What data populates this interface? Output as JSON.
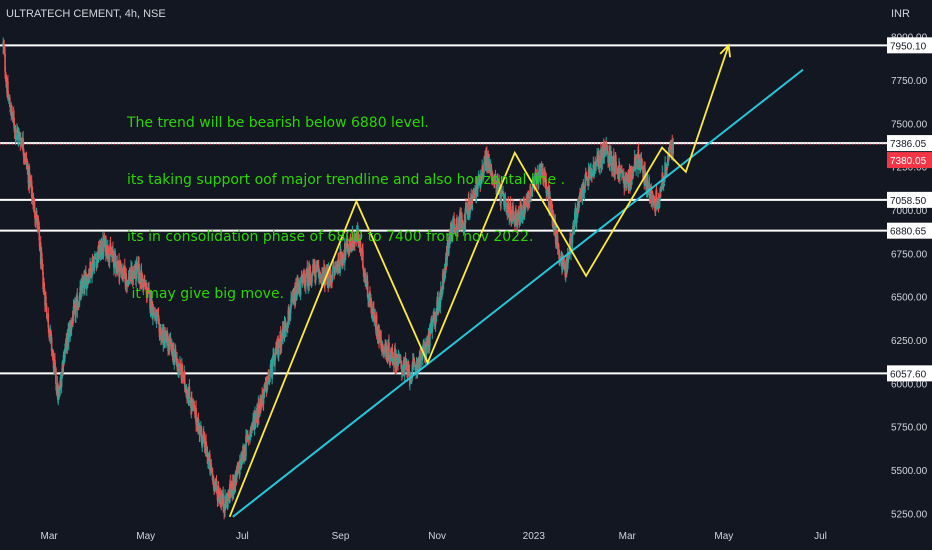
{
  "header": {
    "symbol": "ULTRATECH CEMENT, 4h, NSE",
    "currency": "INR"
  },
  "annotation": [
    "The trend will be bearish below 6880 level.",
    "its taking support oof major trendline and also horizontal line .",
    "its in consolidation phase of 6800 to 7400 from nov 2022.",
    " it may give big move."
  ],
  "colors": {
    "background": "#131722",
    "up": "#26a69a",
    "down": "#ef5350",
    "zigzag": "#ffeb3b",
    "trendline": "#26c6da",
    "levels": "#ffffff",
    "last_price": "#f23645",
    "annotation": "#2bd600",
    "axis_text": "#d1d4dc"
  },
  "chart_data": {
    "type": "candlestick",
    "title": "ULTRATECH CEMENT, 4h, NSE",
    "ylim": [
      5200,
      8050
    ],
    "y_ticks": [
      5250,
      5500,
      5750,
      6000,
      6250,
      6500,
      6750,
      7000,
      7250,
      7500,
      7750,
      8000
    ],
    "x_ticks": [
      "Mar",
      "May",
      "Jul",
      "Sep",
      "Nov",
      "2023",
      "Mar",
      "May",
      "Jul"
    ],
    "x_tick_dates": [
      "2022-03-01",
      "2022-05-01",
      "2022-07-01",
      "2022-09-01",
      "2022-11-01",
      "2023-01-01",
      "2023-03-01",
      "2023-05-01",
      "2023-07-01"
    ],
    "x_range": [
      "2022-01-29",
      "2023-08-12"
    ],
    "price_series": [
      [
        "2022-01-31",
        7950
      ],
      [
        "2022-02-03",
        7650
      ],
      [
        "2022-02-08",
        7450
      ],
      [
        "2022-02-12",
        7400
      ],
      [
        "2022-02-17",
        7150
      ],
      [
        "2022-02-22",
        6900
      ],
      [
        "2022-02-25",
        6600
      ],
      [
        "2022-03-02",
        6250
      ],
      [
        "2022-03-07",
        5900
      ],
      [
        "2022-03-10",
        6150
      ],
      [
        "2022-03-15",
        6350
      ],
      [
        "2022-03-22",
        6550
      ],
      [
        "2022-03-29",
        6700
      ],
      [
        "2022-04-05",
        6800
      ],
      [
        "2022-04-12",
        6700
      ],
      [
        "2022-04-19",
        6600
      ],
      [
        "2022-04-26",
        6650
      ],
      [
        "2022-05-03",
        6500
      ],
      [
        "2022-05-10",
        6300
      ],
      [
        "2022-05-17",
        6200
      ],
      [
        "2022-05-24",
        6050
      ],
      [
        "2022-05-31",
        5850
      ],
      [
        "2022-06-07",
        5650
      ],
      [
        "2022-06-14",
        5400
      ],
      [
        "2022-06-20",
        5300
      ],
      [
        "2022-06-27",
        5450
      ],
      [
        "2022-07-05",
        5700
      ],
      [
        "2022-07-15",
        5950
      ],
      [
        "2022-07-25",
        6250
      ],
      [
        "2022-08-05",
        6550
      ],
      [
        "2022-08-15",
        6650
      ],
      [
        "2022-08-25",
        6600
      ],
      [
        "2022-09-05",
        6780
      ],
      [
        "2022-09-12",
        6850
      ],
      [
        "2022-09-20",
        6450
      ],
      [
        "2022-09-28",
        6200
      ],
      [
        "2022-10-05",
        6150
      ],
      [
        "2022-10-15",
        6050
      ],
      [
        "2022-10-25",
        6200
      ],
      [
        "2022-11-03",
        6500
      ],
      [
        "2022-11-10",
        6900
      ],
      [
        "2022-11-18",
        6950
      ],
      [
        "2022-11-25",
        7100
      ],
      [
        "2022-12-02",
        7300
      ],
      [
        "2022-12-08",
        7150
      ],
      [
        "2022-12-15",
        7000
      ],
      [
        "2022-12-22",
        6950
      ],
      [
        "2022-12-30",
        7100
      ],
      [
        "2023-01-06",
        7250
      ],
      [
        "2023-01-12",
        7000
      ],
      [
        "2023-01-17",
        6750
      ],
      [
        "2023-01-21",
        6650
      ],
      [
        "2023-01-27",
        6950
      ],
      [
        "2023-02-02",
        7150
      ],
      [
        "2023-02-09",
        7250
      ],
      [
        "2023-02-15",
        7350
      ],
      [
        "2023-02-22",
        7250
      ],
      [
        "2023-03-01",
        7150
      ],
      [
        "2023-03-08",
        7300
      ],
      [
        "2023-03-15",
        7100
      ],
      [
        "2023-03-20",
        7050
      ],
      [
        "2023-03-27",
        7300
      ],
      [
        "2023-03-30",
        7380
      ]
    ],
    "last_price": 7380.05,
    "horizontal_levels": [
      {
        "label": "7950.10",
        "value": 7950.1
      },
      {
        "label": "7386.05",
        "value": 7386.05
      },
      {
        "label": "7058.50",
        "value": 7058.5
      },
      {
        "label": "6880.65",
        "value": 6880.65
      },
      {
        "label": "6057.60",
        "value": 6057.6
      }
    ],
    "last_price_label": "7380.05",
    "zigzag": [
      [
        "2022-06-23",
        5230
      ],
      [
        "2022-09-11",
        7050
      ],
      [
        "2022-10-26",
        6120
      ],
      [
        "2022-12-20",
        7330
      ],
      [
        "2023-02-03",
        6620
      ],
      [
        "2023-03-23",
        7360
      ],
      [
        "2023-04-07",
        7220
      ],
      [
        "2023-05-04",
        7950
      ]
    ],
    "trendline": [
      [
        "2022-06-25",
        5230
      ],
      [
        "2023-06-20",
        7810
      ]
    ]
  }
}
